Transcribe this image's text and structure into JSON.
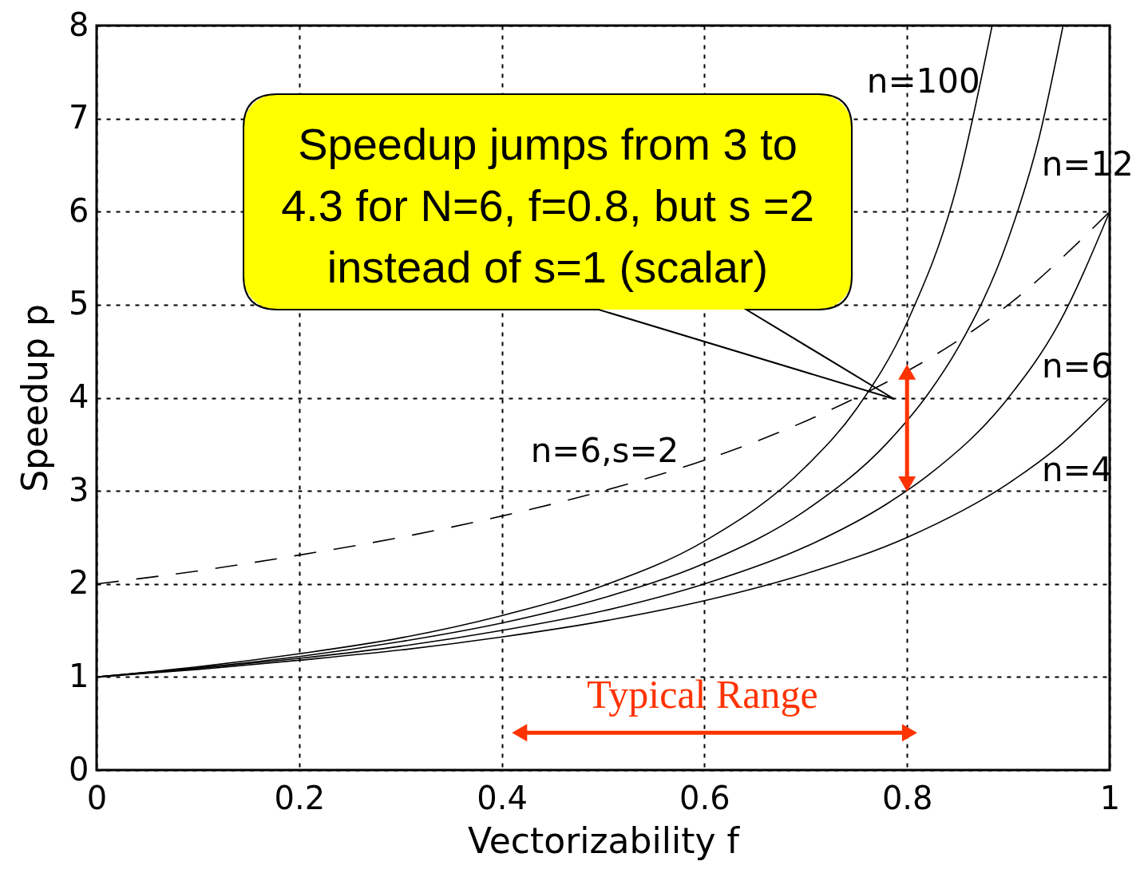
{
  "chart_data": {
    "type": "line",
    "xlabel": "Vectorizability f",
    "ylabel": "Speedup p",
    "xlim": [
      0,
      1
    ],
    "ylim": [
      0,
      8
    ],
    "xticks": [
      0,
      0.2,
      0.4,
      0.6,
      0.8,
      1
    ],
    "yticks": [
      0,
      1,
      2,
      3,
      4,
      5,
      6,
      7,
      8
    ],
    "grid": true,
    "line_style": "solid",
    "series": [
      {
        "name": "n=100",
        "color": "#000000",
        "x": [
          0,
          0.1,
          0.2,
          0.3,
          0.4,
          0.5,
          0.6,
          0.7,
          0.75,
          0.8,
          0.85,
          0.884
        ],
        "values": [
          1,
          1.11,
          1.25,
          1.42,
          1.66,
          1.98,
          2.46,
          3.26,
          3.88,
          4.81,
          6.31,
          8
        ]
      },
      {
        "name": "n=12",
        "color": "#000000",
        "x": [
          0,
          0.1,
          0.2,
          0.3,
          0.4,
          0.5,
          0.6,
          0.7,
          0.78,
          0.82,
          0.85,
          0.9,
          0.93,
          0.954
        ],
        "values": [
          1,
          1.1,
          1.22,
          1.38,
          1.58,
          1.85,
          2.22,
          2.79,
          3.51,
          4.03,
          4.53,
          5.71,
          6.78,
          8
        ]
      },
      {
        "name": "n=6",
        "color": "#000000",
        "x": [
          0,
          0.1,
          0.2,
          0.3,
          0.4,
          0.5,
          0.6,
          0.7,
          0.78,
          0.82,
          0.9,
          0.95,
          1
        ],
        "values": [
          1,
          1.09,
          1.2,
          1.33,
          1.5,
          1.71,
          2,
          2.4,
          2.86,
          3.16,
          4,
          4.8,
          6
        ]
      },
      {
        "name": "n=4",
        "color": "#000000",
        "x": [
          0,
          0.1,
          0.2,
          0.3,
          0.4,
          0.5,
          0.6,
          0.7,
          0.8,
          0.9,
          0.95,
          1
        ],
        "values": [
          1,
          1.08,
          1.18,
          1.29,
          1.43,
          1.6,
          1.82,
          2.11,
          2.5,
          3.08,
          3.48,
          4
        ]
      },
      {
        "name": "n=6,s=2",
        "color": "#000000",
        "line_style": "dashed",
        "x": [
          0,
          0.1,
          0.2,
          0.3,
          0.4,
          0.5,
          0.6,
          0.7,
          0.78,
          0.82,
          0.9,
          1
        ],
        "values": [
          2,
          2.14,
          2.31,
          2.5,
          2.73,
          3,
          3.33,
          3.75,
          4.17,
          4.41,
          5,
          6
        ]
      },
      {
        "color": "#ff3300",
        "marker": "triangle",
        "x": [
          0.8,
          0.8
        ],
        "values": [
          3.1,
          4.25
        ]
      },
      {
        "color": "#ff3300",
        "marker": "triangle",
        "x": [
          0.42,
          0.8
        ],
        "values": [
          0.4,
          0.4
        ]
      }
    ],
    "annotations": [
      "Speedup jumps from 3 to\n4.3 for N=6, f=0.8, but s =2\ninstead of s=1 (scalar)",
      "Typical Range"
    ]
  }
}
